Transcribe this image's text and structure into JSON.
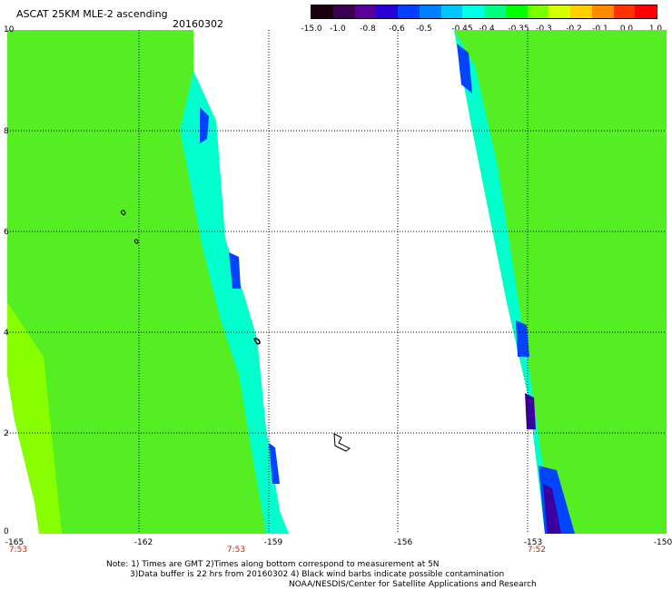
{
  "header": {
    "title": "ASCAT 25KM MLE-2 ascending",
    "date": "20160302"
  },
  "colorbar": {
    "ticks": [
      "-15.0",
      "-1.0",
      "-0.8",
      "-0.6",
      "-0.5",
      "-0.45",
      "-0.4",
      "-0.35",
      "-0.3",
      "-0.2",
      "-0.1",
      "0.0",
      "1.0"
    ],
    "colors": [
      "#1a0010",
      "#3c0050",
      "#5a009a",
      "#2a00d8",
      "#0040ff",
      "#0080ff",
      "#00c8ff",
      "#00ffe6",
      "#00ff80",
      "#00ff00",
      "#7aff00",
      "#d8ff00",
      "#ffd000",
      "#ff8c00",
      "#ff3200",
      "#ff0000"
    ]
  },
  "map": {
    "x_ticks": [
      "-165",
      "-162",
      "-159",
      "-156",
      "-153",
      "-150"
    ],
    "y_ticks": [
      "10",
      "8",
      "6",
      "4",
      "2",
      "0"
    ],
    "time_labels": [
      "7:53",
      "7:53",
      "7:52"
    ],
    "land_color": "#66ff33"
  },
  "notes": {
    "line1": "Note: 1) Times are GMT 2)Times along bottom correspond to measurement at 5N",
    "line2": "3)Data buffer is 22 hrs from 20160302 4) Black wind barbs indicate possible contamination",
    "line3": "NOAA/NESDIS/Center for Satellite Applications and Research"
  }
}
